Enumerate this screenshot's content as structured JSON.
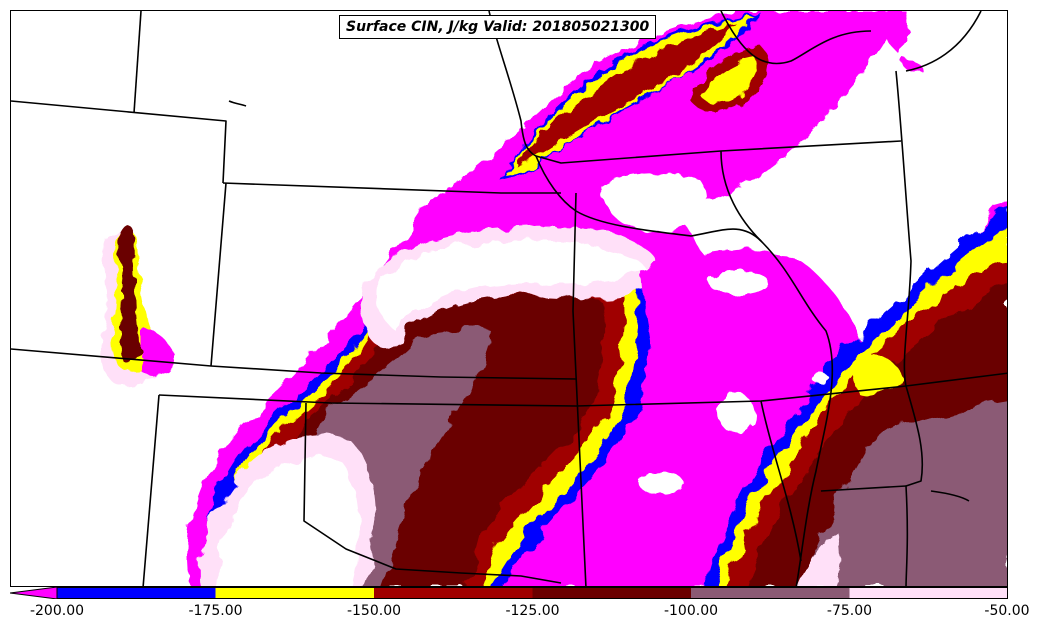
{
  "map": {
    "title": "Surface CIN, J/kg Valid: 201805021300",
    "field": "Surface CIN",
    "units": "J/kg",
    "valid": "201805021300"
  },
  "colorbar": {
    "levels": [
      {
        "from": -200,
        "to": -175,
        "color": "#0000ff"
      },
      {
        "from": -175,
        "to": -150,
        "color": "#ffff00"
      },
      {
        "from": -150,
        "to": -125,
        "color": "#a00000"
      },
      {
        "from": -125,
        "to": -100,
        "color": "#6b0000"
      },
      {
        "from": -100,
        "to": -75,
        "color": "#8b5a74"
      },
      {
        "from": -75,
        "to": -50,
        "color": "#ffe0f8"
      }
    ],
    "under_color": "#ff00ff",
    "tick_labels": [
      "-200.00",
      "-175.00",
      "-150.00",
      "-125.00",
      "-100.00",
      "-75.00",
      "-50.00"
    ]
  }
}
